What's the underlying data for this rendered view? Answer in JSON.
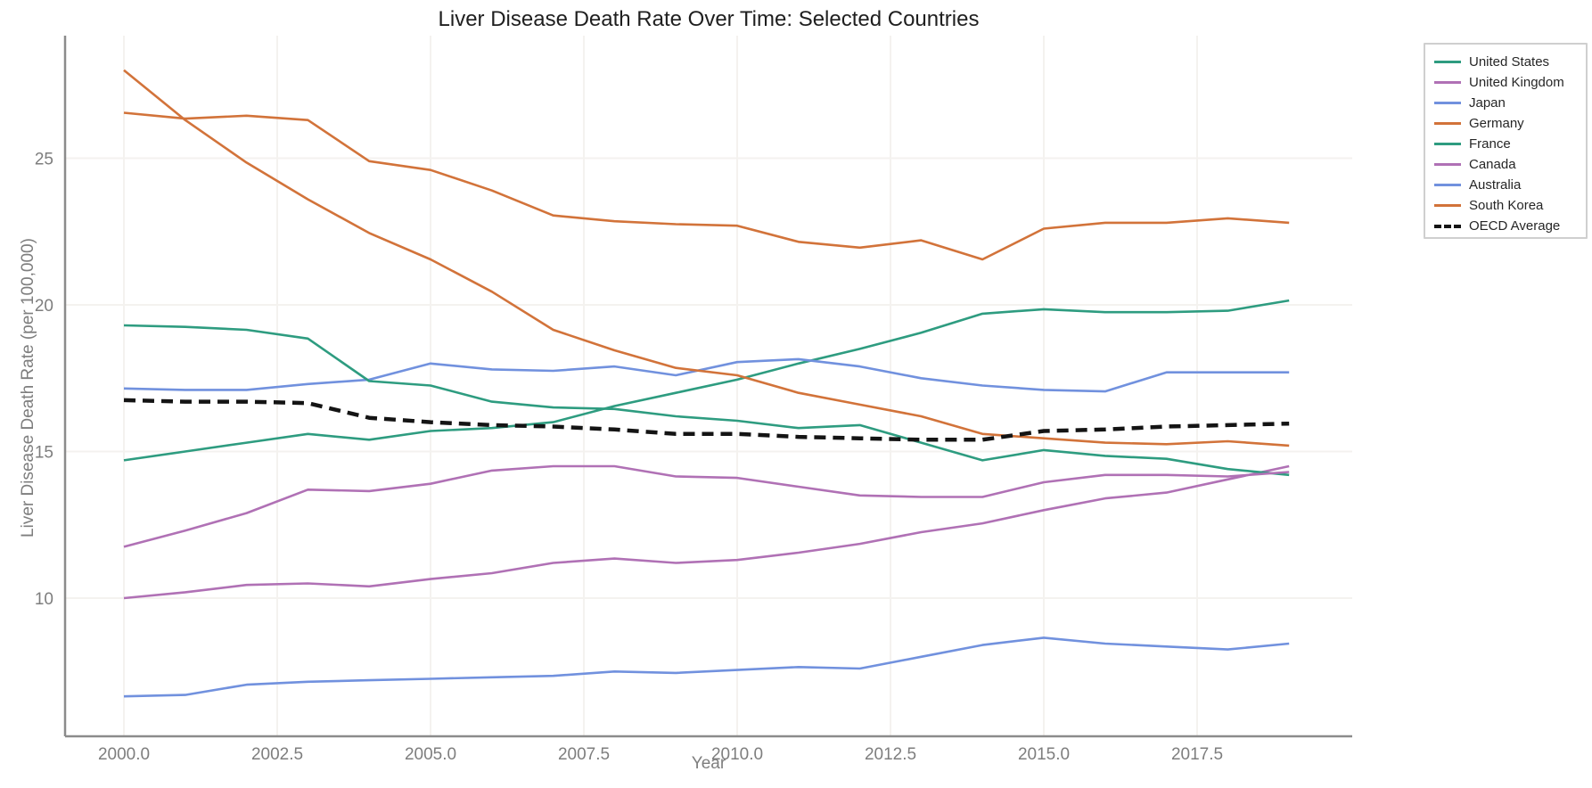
{
  "chart_data": {
    "type": "line",
    "title": "Liver Disease Death Rate Over Time: Selected Countries",
    "xlabel": "Year",
    "ylabel": "Liver Disease Death Rate (per 100,000)",
    "x": [
      2000,
      2001,
      2002,
      2003,
      2004,
      2005,
      2006,
      2007,
      2008,
      2009,
      2010,
      2011,
      2012,
      2013,
      2014,
      2015,
      2016,
      2017,
      2018,
      2019
    ],
    "x_tick_values": [
      2000,
      2002.5,
      2005,
      2007.5,
      2010,
      2012.5,
      2015,
      2017.5
    ],
    "x_tick_labels": [
      "2000.0",
      "2002.5",
      "2005.0",
      "2007.5",
      "2010.0",
      "2012.5",
      "2015.0",
      "2017.5"
    ],
    "y_tick_values": [
      10,
      15,
      20,
      25
    ],
    "y_tick_labels": [
      "10",
      "15",
      "20",
      "25"
    ],
    "x_range": [
      1999.05,
      2020.05
    ],
    "y_range": [
      2.8,
      29.2
    ],
    "grid": true,
    "legend_position": "upper-right-outside",
    "palette": {
      "teal": "#2E9C80",
      "purple": "#B071B5",
      "blue": "#7191DE",
      "orange": "#D2733A",
      "black": "#141414"
    },
    "series": [
      {
        "name": "United States",
        "color": "teal",
        "style": "solid",
        "values": [
          14.7,
          15.0,
          15.3,
          15.6,
          15.4,
          15.7,
          15.8,
          16.0,
          16.55,
          17.0,
          17.45,
          18.0,
          18.5,
          19.05,
          19.7,
          19.85,
          19.75,
          19.75,
          19.8,
          20.15
        ]
      },
      {
        "name": "United Kingdom",
        "color": "purple",
        "style": "solid",
        "values": [
          10.0,
          10.2,
          10.45,
          10.5,
          10.4,
          10.65,
          10.85,
          11.2,
          11.35,
          11.2,
          11.3,
          11.55,
          11.85,
          12.25,
          12.55,
          13.0,
          13.4,
          13.6,
          14.05,
          14.5
        ]
      },
      {
        "name": "Japan",
        "color": "blue",
        "style": "solid",
        "values": [
          17.15,
          17.1,
          17.1,
          17.3,
          17.45,
          18.0,
          17.8,
          17.75,
          17.9,
          17.6,
          18.05,
          18.15,
          17.9,
          17.5,
          17.25,
          17.1,
          17.05,
          17.7,
          17.7,
          17.7
        ]
      },
      {
        "name": "Germany",
        "color": "orange",
        "style": "solid",
        "values": [
          26.55,
          26.35,
          26.45,
          26.3,
          24.9,
          24.6,
          23.9,
          23.05,
          22.85,
          22.75,
          22.7,
          22.15,
          21.95,
          22.2,
          21.55,
          22.6,
          22.8,
          22.8,
          22.95,
          22.8
        ]
      },
      {
        "name": "France",
        "color": "teal",
        "style": "solid",
        "values": [
          19.3,
          19.25,
          19.15,
          18.85,
          17.4,
          17.25,
          16.7,
          16.5,
          16.45,
          16.2,
          16.05,
          15.8,
          15.9,
          15.3,
          14.7,
          15.05,
          14.85,
          14.75,
          14.4,
          14.2
        ]
      },
      {
        "name": "Canada",
        "color": "purple",
        "style": "solid",
        "values": [
          11.75,
          12.3,
          12.9,
          13.7,
          13.65,
          13.9,
          14.35,
          14.5,
          14.5,
          14.15,
          14.1,
          13.8,
          13.5,
          13.45,
          13.45,
          13.95,
          14.2,
          14.2,
          14.15,
          14.3
        ]
      },
      {
        "name": "Australia",
        "color": "blue",
        "style": "solid",
        "values": [
          6.65,
          6.7,
          7.05,
          7.15,
          7.2,
          7.25,
          7.3,
          7.35,
          7.5,
          7.45,
          7.55,
          7.65,
          7.6,
          8.0,
          8.4,
          8.65,
          8.45,
          8.35,
          8.25,
          8.45
        ]
      },
      {
        "name": "South Korea",
        "color": "orange",
        "style": "solid",
        "values": [
          28.0,
          26.3,
          24.85,
          23.6,
          22.45,
          21.55,
          20.45,
          19.15,
          18.45,
          17.85,
          17.6,
          17.0,
          16.6,
          16.2,
          15.6,
          15.45,
          15.3,
          15.25,
          15.35,
          15.2
        ]
      },
      {
        "name": "OECD Average",
        "color": "black",
        "style": "dashed",
        "values": [
          16.75,
          16.7,
          16.7,
          16.65,
          16.15,
          16.0,
          15.9,
          15.85,
          15.75,
          15.6,
          15.6,
          15.5,
          15.45,
          15.4,
          15.4,
          15.7,
          15.75,
          15.85,
          15.9,
          15.95
        ]
      }
    ]
  }
}
